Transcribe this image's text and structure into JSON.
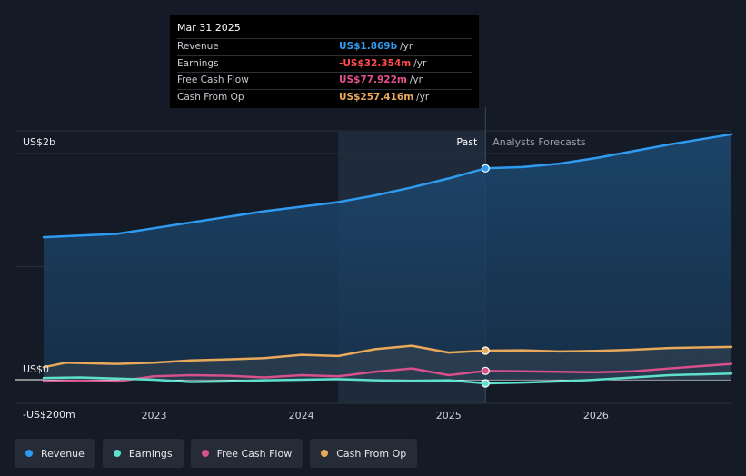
{
  "tooltip": {
    "date": "Mar 31 2025",
    "rows": [
      {
        "label": "Revenue",
        "value": "US$1.869b",
        "unit": "/yr",
        "color": "#2f9bf0"
      },
      {
        "label": "Earnings",
        "value": "-US$32.354m",
        "unit": "/yr",
        "color": "#ff4d4d"
      },
      {
        "label": "Free Cash Flow",
        "value": "US$77.922m",
        "unit": "/yr",
        "color": "#e0508c"
      },
      {
        "label": "Cash From Op",
        "value": "US$257.416m",
        "unit": "/yr",
        "color": "#e8a95b"
      }
    ]
  },
  "legend": [
    {
      "label": "Revenue",
      "color": "#2f9bf0"
    },
    {
      "label": "Earnings",
      "color": "#5ee0cc"
    },
    {
      "label": "Free Cash Flow",
      "color": "#d6508c"
    },
    {
      "label": "Cash From Op",
      "color": "#e8a95b"
    }
  ],
  "chart_data": {
    "type": "line",
    "title": "",
    "xlabel": "",
    "ylabel": "",
    "xlim": [
      2022.25,
      2026.92
    ],
    "ylim": [
      -200,
      2200
    ],
    "divider_x": 2025.25,
    "shade_start_x": 2024.25,
    "past_label": "Past",
    "forecast_label": "Analysts Forecasts",
    "y_ticks": [
      {
        "value": 2000,
        "label": "US$2b"
      },
      {
        "value": 0,
        "label": "US$0"
      },
      {
        "value": -200,
        "label": "-US$200m"
      }
    ],
    "gridlines": [
      2200,
      2000,
      1000,
      0
    ],
    "x_ticks": [
      {
        "value": 2023,
        "label": "2023"
      },
      {
        "value": 2024,
        "label": "2024"
      },
      {
        "value": 2025,
        "label": "2025"
      },
      {
        "value": 2026,
        "label": "2026"
      }
    ],
    "series": [
      {
        "name": "Revenue",
        "color": "#2f9bf0",
        "fill": true,
        "marker_at": 2025.25,
        "marker_value": 1869,
        "points": [
          [
            2022.25,
            1260
          ],
          [
            2022.5,
            1275
          ],
          [
            2022.75,
            1290
          ],
          [
            2023,
            1340
          ],
          [
            2023.25,
            1390
          ],
          [
            2023.5,
            1440
          ],
          [
            2023.75,
            1490
          ],
          [
            2024,
            1530
          ],
          [
            2024.25,
            1570
          ],
          [
            2024.5,
            1630
          ],
          [
            2024.75,
            1700
          ],
          [
            2025,
            1780
          ],
          [
            2025.25,
            1869
          ],
          [
            2025.5,
            1880
          ],
          [
            2025.75,
            1910
          ],
          [
            2026,
            1960
          ],
          [
            2026.25,
            2020
          ],
          [
            2026.5,
            2080
          ],
          [
            2026.92,
            2170
          ]
        ]
      },
      {
        "name": "Cash From Op",
        "color": "#e8a95b",
        "fill": true,
        "marker_at": 2025.25,
        "marker_value": 257,
        "points": [
          [
            2022.25,
            110
          ],
          [
            2022.4,
            150
          ],
          [
            2022.75,
            140
          ],
          [
            2023,
            150
          ],
          [
            2023.25,
            170
          ],
          [
            2023.5,
            180
          ],
          [
            2023.75,
            190
          ],
          [
            2024,
            220
          ],
          [
            2024.25,
            210
          ],
          [
            2024.5,
            270
          ],
          [
            2024.75,
            300
          ],
          [
            2025,
            240
          ],
          [
            2025.25,
            257
          ],
          [
            2025.5,
            260
          ],
          [
            2025.75,
            250
          ],
          [
            2026,
            255
          ],
          [
            2026.25,
            265
          ],
          [
            2026.5,
            280
          ],
          [
            2026.92,
            290
          ]
        ]
      },
      {
        "name": "Free Cash Flow",
        "color": "#d6508c",
        "fill": false,
        "marker_at": 2025.25,
        "marker_value": 78,
        "points": [
          [
            2022.25,
            -15
          ],
          [
            2022.5,
            -10
          ],
          [
            2022.75,
            -15
          ],
          [
            2023,
            30
          ],
          [
            2023.25,
            40
          ],
          [
            2023.5,
            35
          ],
          [
            2023.75,
            20
          ],
          [
            2024,
            40
          ],
          [
            2024.25,
            30
          ],
          [
            2024.5,
            70
          ],
          [
            2024.75,
            100
          ],
          [
            2025,
            40
          ],
          [
            2025.25,
            78
          ],
          [
            2025.5,
            75
          ],
          [
            2025.75,
            70
          ],
          [
            2026,
            65
          ],
          [
            2026.25,
            75
          ],
          [
            2026.5,
            100
          ],
          [
            2026.92,
            140
          ]
        ]
      },
      {
        "name": "Earnings",
        "color": "#5ee0cc",
        "fill": false,
        "marker_at": 2025.25,
        "marker_value": -32,
        "points": [
          [
            2022.25,
            15
          ],
          [
            2022.5,
            20
          ],
          [
            2022.75,
            10
          ],
          [
            2023,
            0
          ],
          [
            2023.25,
            -20
          ],
          [
            2023.5,
            -15
          ],
          [
            2023.75,
            -5
          ],
          [
            2024,
            0
          ],
          [
            2024.25,
            5
          ],
          [
            2024.5,
            -5
          ],
          [
            2024.75,
            -10
          ],
          [
            2025,
            -5
          ],
          [
            2025.25,
            -32
          ],
          [
            2025.5,
            -25
          ],
          [
            2025.75,
            -15
          ],
          [
            2026,
            0
          ],
          [
            2026.25,
            20
          ],
          [
            2026.5,
            40
          ],
          [
            2026.92,
            55
          ]
        ]
      }
    ]
  }
}
